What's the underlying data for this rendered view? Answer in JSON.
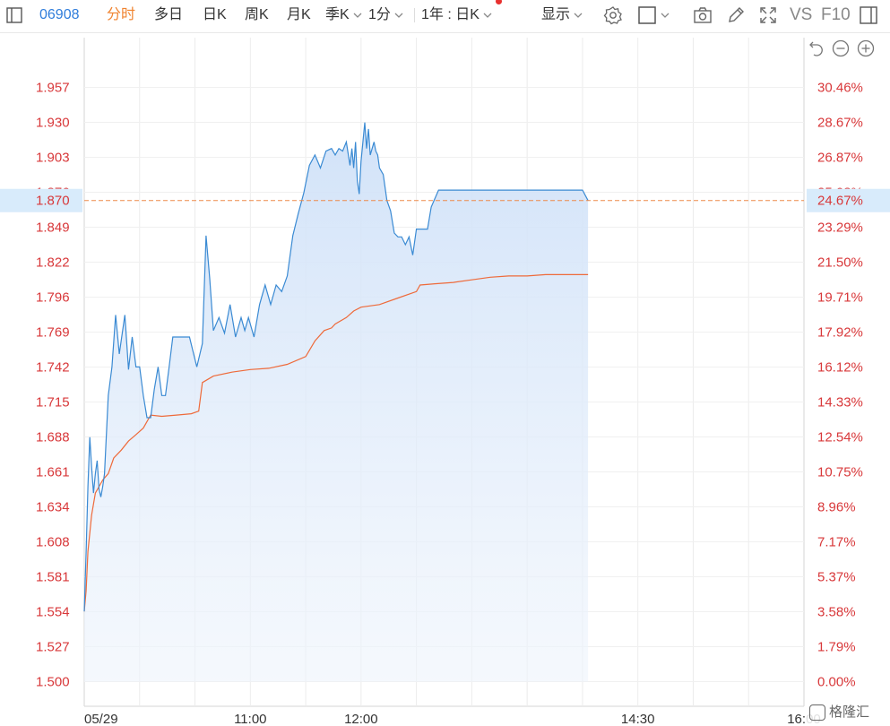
{
  "toolbar": {
    "code": "06908",
    "tabs": [
      "分时",
      "多日",
      "日K",
      "周K",
      "月K",
      "季K"
    ],
    "period": "1分",
    "range": "1年 : 日K",
    "display": "显示",
    "vs": "VS",
    "f10": "F10",
    "icons": [
      "sidebar-toggle-icon",
      "gear-icon",
      "square-checkbox-icon",
      "camera-icon",
      "pen-icon",
      "fullscreen-icon",
      "panel-icon"
    ]
  },
  "chart_controls": [
    "undo-icon",
    "zoom-out-icon",
    "zoom-in-icon"
  ],
  "watermark": "格隆汇",
  "chart_data": {
    "type": "line",
    "x_ticks": [
      "05/29",
      "11:00",
      "12:00",
      "14:30",
      "16:00"
    ],
    "y_ticks": [
      "1.500",
      "1.527",
      "1.554",
      "1.581",
      "1.608",
      "1.634",
      "1.661",
      "1.688",
      "1.715",
      "1.742",
      "1.769",
      "1.796",
      "1.822",
      "1.849",
      "1.876",
      "1.903",
      "1.930",
      "1.957"
    ],
    "pct_ticks": [
      "0.00%",
      "1.79%",
      "3.58%",
      "5.37%",
      "7.17%",
      "8.96%",
      "10.75%",
      "12.54%",
      "14.33%",
      "16.12%",
      "17.92%",
      "19.71%",
      "21.50%",
      "23.29%",
      "25.08%",
      "26.87%",
      "28.67%",
      "30.46%"
    ],
    "ylim": [
      1.5,
      1.957
    ],
    "current_price": "1.870",
    "current_pct": "24.67%",
    "session_start_min": 570,
    "session_end_min": 960,
    "colors": {
      "price": "#3a8ad3",
      "avg": "#ee6a3a",
      "label": "#d8383a",
      "fill": "#d6e6fb"
    },
    "series": [
      {
        "name": "price",
        "x": [
          570,
          571,
          572,
          573,
          574,
          575,
          576,
          577,
          578,
          579,
          580,
          581,
          583,
          585,
          587,
          589,
          592,
          594,
          596,
          598,
          600,
          602,
          604,
          606,
          608,
          610,
          612,
          614,
          616,
          618,
          620,
          623,
          627,
          631,
          634,
          636,
          638,
          640,
          643,
          646,
          649,
          652,
          655,
          657,
          659,
          662,
          665,
          668,
          671,
          674,
          677,
          680,
          683,
          686,
          689,
          692,
          695,
          698,
          701,
          704,
          706,
          708,
          710,
          712,
          714,
          715,
          716,
          717,
          718,
          719,
          720,
          721,
          722,
          723,
          724,
          725,
          726,
          727,
          728,
          729,
          730,
          732,
          734,
          736,
          738,
          740,
          742,
          744,
          746,
          748,
          750,
          752,
          754,
          756,
          758,
          762,
          766,
          770,
          774,
          778,
          782,
          786,
          790,
          794,
          798,
          802,
          806,
          810,
          814,
          818,
          822,
          826,
          830,
          833,
          836,
          840,
          843
        ],
        "values": [
          1.554,
          1.6,
          1.65,
          1.688,
          1.665,
          1.645,
          1.66,
          1.67,
          1.648,
          1.642,
          1.65,
          1.66,
          1.72,
          1.742,
          1.782,
          1.752,
          1.782,
          1.74,
          1.765,
          1.742,
          1.742,
          1.72,
          1.703,
          1.703,
          1.725,
          1.742,
          1.72,
          1.72,
          1.742,
          1.765,
          1.765,
          1.765,
          1.765,
          1.742,
          1.76,
          1.843,
          1.81,
          1.77,
          1.78,
          1.768,
          1.79,
          1.765,
          1.78,
          1.77,
          1.78,
          1.765,
          1.79,
          1.805,
          1.79,
          1.805,
          1.8,
          1.812,
          1.843,
          1.86,
          1.876,
          1.897,
          1.905,
          1.895,
          1.908,
          1.91,
          1.905,
          1.91,
          1.908,
          1.915,
          1.897,
          1.91,
          1.895,
          1.915,
          1.885,
          1.875,
          1.9,
          1.915,
          1.93,
          1.91,
          1.925,
          1.905,
          1.91,
          1.915,
          1.908,
          1.905,
          1.895,
          1.89,
          1.87,
          1.862,
          1.845,
          1.842,
          1.842,
          1.836,
          1.842,
          1.828,
          1.848,
          1.848,
          1.848,
          1.848,
          1.865,
          1.878,
          1.878,
          1.878,
          1.878,
          1.878,
          1.878,
          1.878,
          1.878,
          1.878,
          1.878,
          1.878,
          1.878,
          1.878,
          1.878,
          1.878,
          1.878,
          1.878,
          1.878,
          1.878,
          1.878,
          1.878,
          1.87
        ]
      },
      {
        "name": "avg",
        "x": [
          570,
          571,
          572,
          574,
          576,
          578,
          580,
          583,
          586,
          590,
          594,
          598,
          602,
          606,
          612,
          620,
          628,
          632,
          634,
          640,
          650,
          660,
          670,
          680,
          690,
          695,
          700,
          704,
          706,
          712,
          716,
          720,
          730,
          740,
          750,
          752,
          760,
          770,
          780,
          790,
          800,
          810,
          820,
          830,
          843
        ],
        "values": [
          1.554,
          1.57,
          1.6,
          1.628,
          1.645,
          1.65,
          1.655,
          1.66,
          1.672,
          1.678,
          1.685,
          1.69,
          1.695,
          1.705,
          1.704,
          1.705,
          1.706,
          1.708,
          1.73,
          1.735,
          1.738,
          1.74,
          1.741,
          1.744,
          1.75,
          1.762,
          1.77,
          1.772,
          1.775,
          1.78,
          1.785,
          1.788,
          1.79,
          1.795,
          1.8,
          1.805,
          1.806,
          1.807,
          1.809,
          1.811,
          1.812,
          1.812,
          1.813,
          1.813,
          1.813
        ]
      }
    ]
  }
}
